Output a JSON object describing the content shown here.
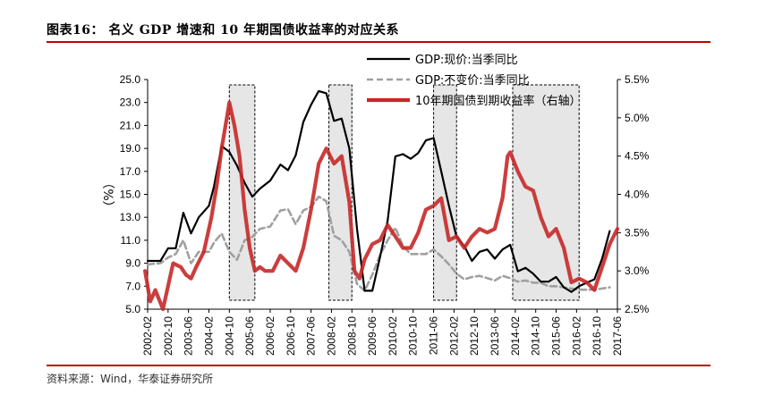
{
  "figure": {
    "title": "图表16：  名义 GDP 增速和 10 年期国债收益率的对应关系",
    "source": "资料来源：Wind，华泰证券研究所"
  },
  "colors": {
    "nominal_gdp": "#000000",
    "real_gdp": "#a0a0a0",
    "bond_yield": "#c62828",
    "shade_fill": "#e6e6e6",
    "accent_rule": "#c00000"
  },
  "chart_data": {
    "type": "line",
    "ylabel": "（%）",
    "ylim_left": [
      5.0,
      25.0
    ],
    "ylim_right": [
      2.5,
      5.5
    ],
    "y_ticks_left": [
      "25.0",
      "23.0",
      "21.0",
      "19.0",
      "17.0",
      "15.0",
      "13.0",
      "11.0",
      "9.0",
      "7.0",
      "5.0"
    ],
    "y_ticks_right": [
      "5.5%",
      "5.0%",
      "4.5%",
      "4.0%",
      "3.5%",
      "3.0%",
      "2.5%"
    ],
    "x_ticks": [
      "2002-02",
      "2002-10",
      "2003-06",
      "2004-02",
      "2004-10",
      "2005-06",
      "2006-02",
      "2006-10",
      "2007-06",
      "2008-02",
      "2008-10",
      "2009-06",
      "2010-02",
      "2010-10",
      "2011-06",
      "2012-02",
      "2012-10",
      "2013-06",
      "2014-02",
      "2014-10",
      "2015-06",
      "2016-02",
      "2016-10",
      "2017-06"
    ],
    "shaded_periods": [
      [
        "2004-10",
        "2005-08"
      ],
      [
        "2008-01",
        "2008-10"
      ],
      [
        "2011-06",
        "2012-03"
      ],
      [
        "2014-01",
        "2016-03"
      ]
    ],
    "legend_position": "top-right",
    "series": [
      {
        "name": "GDP:现价:当季同比",
        "axis": "left",
        "points": [
          [
            "2002-02",
            9.2
          ],
          [
            "2002-07",
            9.2
          ],
          [
            "2002-10",
            10.3
          ],
          [
            "2003-01",
            10.3
          ],
          [
            "2003-04",
            13.4
          ],
          [
            "2003-07",
            11.6
          ],
          [
            "2003-10",
            13.0
          ],
          [
            "2004-02",
            14.0
          ],
          [
            "2004-04",
            15.7
          ],
          [
            "2004-07",
            19.2
          ],
          [
            "2004-10",
            18.7
          ],
          [
            "2005-01",
            17.5
          ],
          [
            "2005-04",
            16.0
          ],
          [
            "2005-07",
            14.8
          ],
          [
            "2005-10",
            15.5
          ],
          [
            "2006-02",
            16.2
          ],
          [
            "2006-06",
            17.6
          ],
          [
            "2006-09",
            17.1
          ],
          [
            "2006-12",
            18.4
          ],
          [
            "2007-03",
            21.3
          ],
          [
            "2007-06",
            22.8
          ],
          [
            "2007-09",
            24.0
          ],
          [
            "2007-12",
            23.8
          ],
          [
            "2008-03",
            21.4
          ],
          [
            "2008-06",
            21.6
          ],
          [
            "2008-09",
            19.0
          ],
          [
            "2008-12",
            12.0
          ],
          [
            "2009-03",
            6.6
          ],
          [
            "2009-06",
            6.6
          ],
          [
            "2009-09",
            9.5
          ],
          [
            "2009-12",
            12.7
          ],
          [
            "2010-03",
            18.3
          ],
          [
            "2010-06",
            18.5
          ],
          [
            "2010-09",
            18.1
          ],
          [
            "2010-12",
            18.6
          ],
          [
            "2011-03",
            19.7
          ],
          [
            "2011-06",
            19.9
          ],
          [
            "2011-09",
            17.0
          ],
          [
            "2011-12",
            14.0
          ],
          [
            "2012-03",
            11.3
          ],
          [
            "2012-06",
            10.5
          ],
          [
            "2012-09",
            9.2
          ],
          [
            "2012-12",
            10.0
          ],
          [
            "2013-03",
            10.2
          ],
          [
            "2013-06",
            9.4
          ],
          [
            "2013-09",
            10.2
          ],
          [
            "2013-12",
            10.6
          ],
          [
            "2014-03",
            8.3
          ],
          [
            "2014-06",
            8.6
          ],
          [
            "2014-09",
            8.1
          ],
          [
            "2014-12",
            7.4
          ],
          [
            "2015-03",
            7.4
          ],
          [
            "2015-06",
            7.8
          ],
          [
            "2015-09",
            6.9
          ],
          [
            "2015-12",
            6.5
          ],
          [
            "2016-03",
            7.0
          ],
          [
            "2016-06",
            7.3
          ],
          [
            "2016-09",
            7.6
          ],
          [
            "2016-12",
            9.4
          ],
          [
            "2017-03",
            11.8
          ]
        ]
      },
      {
        "name": "GDP:不变价:当季同比",
        "axis": "left",
        "points": [
          [
            "2002-02",
            8.9
          ],
          [
            "2002-07",
            9.0
          ],
          [
            "2002-10",
            9.5
          ],
          [
            "2003-01",
            9.8
          ],
          [
            "2003-04",
            11.0
          ],
          [
            "2003-07",
            9.0
          ],
          [
            "2003-10",
            10.0
          ],
          [
            "2004-02",
            10.0
          ],
          [
            "2004-04",
            10.8
          ],
          [
            "2004-07",
            11.6
          ],
          [
            "2004-10",
            10.0
          ],
          [
            "2005-01",
            9.3
          ],
          [
            "2005-04",
            11.0
          ],
          [
            "2005-07",
            11.3
          ],
          [
            "2005-10",
            12.0
          ],
          [
            "2006-02",
            12.2
          ],
          [
            "2006-06",
            13.6
          ],
          [
            "2006-09",
            13.7
          ],
          [
            "2006-12",
            12.4
          ],
          [
            "2007-03",
            13.6
          ],
          [
            "2007-06",
            13.9
          ],
          [
            "2007-09",
            14.8
          ],
          [
            "2007-12",
            14.4
          ],
          [
            "2008-03",
            11.4
          ],
          [
            "2008-06",
            11.0
          ],
          [
            "2008-09",
            10.0
          ],
          [
            "2008-12",
            7.2
          ],
          [
            "2009-03",
            6.6
          ],
          [
            "2009-06",
            8.0
          ],
          [
            "2009-09",
            9.7
          ],
          [
            "2009-12",
            11.0
          ],
          [
            "2010-03",
            12.1
          ],
          [
            "2010-06",
            10.5
          ],
          [
            "2010-09",
            9.8
          ],
          [
            "2010-12",
            9.8
          ],
          [
            "2011-03",
            9.8
          ],
          [
            "2011-06",
            10.2
          ],
          [
            "2011-09",
            9.6
          ],
          [
            "2011-12",
            8.9
          ],
          [
            "2012-03",
            8.1
          ],
          [
            "2012-06",
            7.6
          ],
          [
            "2012-09",
            7.8
          ],
          [
            "2012-12",
            7.9
          ],
          [
            "2013-03",
            7.7
          ],
          [
            "2013-06",
            7.5
          ],
          [
            "2013-09",
            7.9
          ],
          [
            "2013-12",
            7.7
          ],
          [
            "2014-03",
            7.4
          ],
          [
            "2014-06",
            7.5
          ],
          [
            "2014-09",
            7.3
          ],
          [
            "2014-12",
            7.3
          ],
          [
            "2015-03",
            7.0
          ],
          [
            "2015-06",
            7.0
          ],
          [
            "2015-09",
            6.9
          ],
          [
            "2015-12",
            6.8
          ],
          [
            "2016-03",
            6.7
          ],
          [
            "2016-06",
            6.7
          ],
          [
            "2016-09",
            6.7
          ],
          [
            "2016-12",
            6.8
          ],
          [
            "2017-03",
            6.9
          ]
        ]
      },
      {
        "name": "10年期国债到期收益率（右轴）",
        "axis": "right",
        "points": [
          [
            "2002-01",
            3.0
          ],
          [
            "2002-03",
            2.6
          ],
          [
            "2002-05",
            2.75
          ],
          [
            "2002-08",
            2.5
          ],
          [
            "2002-10",
            2.8
          ],
          [
            "2002-12",
            3.1
          ],
          [
            "2003-03",
            3.05
          ],
          [
            "2003-05",
            2.95
          ],
          [
            "2003-07",
            2.9
          ],
          [
            "2003-09",
            3.05
          ],
          [
            "2003-12",
            3.25
          ],
          [
            "2004-03",
            3.7
          ],
          [
            "2004-05",
            4.1
          ],
          [
            "2004-07",
            4.6
          ],
          [
            "2004-09",
            5.0
          ],
          [
            "2004-10",
            5.2
          ],
          [
            "2004-12",
            4.9
          ],
          [
            "2005-02",
            4.5
          ],
          [
            "2005-04",
            3.8
          ],
          [
            "2005-06",
            3.3
          ],
          [
            "2005-08",
            3.0
          ],
          [
            "2005-10",
            3.05
          ],
          [
            "2005-12",
            3.0
          ],
          [
            "2006-03",
            3.0
          ],
          [
            "2006-06",
            3.2
          ],
          [
            "2006-09",
            3.1
          ],
          [
            "2006-12",
            3.0
          ],
          [
            "2007-03",
            3.3
          ],
          [
            "2007-06",
            3.8
          ],
          [
            "2007-09",
            4.4
          ],
          [
            "2007-12",
            4.6
          ],
          [
            "2008-03",
            4.4
          ],
          [
            "2008-06",
            4.5
          ],
          [
            "2008-09",
            3.9
          ],
          [
            "2008-11",
            3.0
          ],
          [
            "2009-01",
            2.9
          ],
          [
            "2009-03",
            3.15
          ],
          [
            "2009-06",
            3.35
          ],
          [
            "2009-09",
            3.4
          ],
          [
            "2009-12",
            3.6
          ],
          [
            "2010-03",
            3.45
          ],
          [
            "2010-06",
            3.3
          ],
          [
            "2010-09",
            3.3
          ],
          [
            "2010-12",
            3.5
          ],
          [
            "2011-03",
            3.8
          ],
          [
            "2011-06",
            3.85
          ],
          [
            "2011-09",
            3.95
          ],
          [
            "2011-12",
            3.4
          ],
          [
            "2012-03",
            3.45
          ],
          [
            "2012-06",
            3.3
          ],
          [
            "2012-09",
            3.45
          ],
          [
            "2012-12",
            3.55
          ],
          [
            "2013-03",
            3.5
          ],
          [
            "2013-06",
            3.55
          ],
          [
            "2013-09",
            3.95
          ],
          [
            "2013-11",
            4.5
          ],
          [
            "2013-12",
            4.55
          ],
          [
            "2014-03",
            4.3
          ],
          [
            "2014-06",
            4.1
          ],
          [
            "2014-09",
            4.05
          ],
          [
            "2014-12",
            3.7
          ],
          [
            "2015-03",
            3.45
          ],
          [
            "2015-06",
            3.55
          ],
          [
            "2015-09",
            3.3
          ],
          [
            "2015-12",
            2.85
          ],
          [
            "2016-03",
            2.9
          ],
          [
            "2016-06",
            2.85
          ],
          [
            "2016-09",
            2.75
          ],
          [
            "2016-12",
            3.05
          ],
          [
            "2017-03",
            3.35
          ],
          [
            "2017-06",
            3.55
          ]
        ]
      }
    ]
  }
}
